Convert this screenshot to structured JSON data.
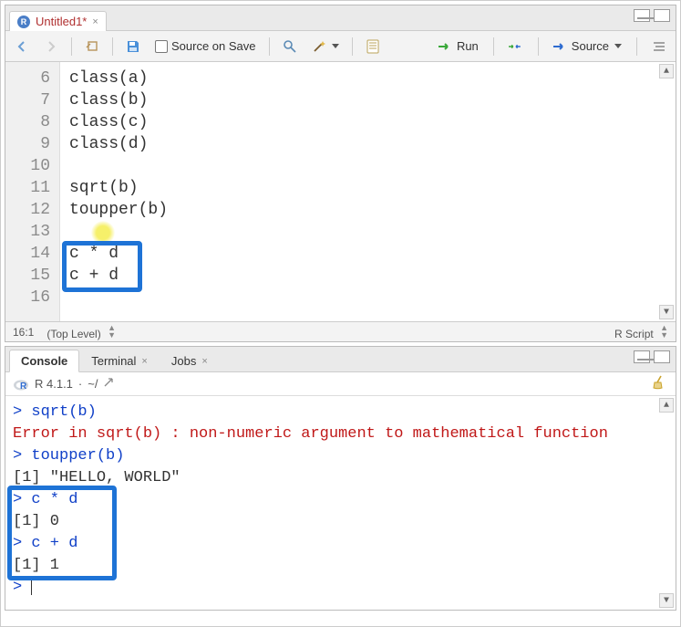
{
  "source": {
    "tab_title": "Untitled1*",
    "source_on_save": "Source on Save",
    "run_label": "Run",
    "source_label": "Source",
    "gutter": [
      "6",
      "7",
      "8",
      "9",
      "10",
      "11",
      "12",
      "13",
      "14",
      "15",
      "16"
    ],
    "lines": [
      "class(a)",
      "class(b)",
      "class(c)",
      "class(d)",
      "",
      "sqrt(b)",
      "toupper(b)",
      "",
      "c * d",
      "c + d",
      ""
    ],
    "status_pos": "16:1",
    "status_scope": "(Top Level)",
    "status_type": "R Script"
  },
  "console": {
    "tabs": {
      "console": "Console",
      "terminal": "Terminal",
      "jobs": "Jobs"
    },
    "rversion": "R 4.1.1",
    "cwd": "~/",
    "lines": [
      {
        "kind": "prompt",
        "text": "> sqrt(b)"
      },
      {
        "kind": "err",
        "text": "Error in sqrt(b) : non-numeric argument to mathematical function"
      },
      {
        "kind": "prompt",
        "text": "> toupper(b)"
      },
      {
        "kind": "out",
        "text": "[1] \"HELLO, WORLD\""
      },
      {
        "kind": "prompt",
        "text": "> c * d"
      },
      {
        "kind": "out",
        "text": "[1] 0"
      },
      {
        "kind": "prompt",
        "text": "> c + d"
      },
      {
        "kind": "out",
        "text": "[1] 1"
      },
      {
        "kind": "prompt",
        "text": "> "
      }
    ]
  },
  "colors": {
    "highlight_border": "#1e73d6",
    "error_text": "#c01818",
    "prompt_text": "#1040c8"
  }
}
